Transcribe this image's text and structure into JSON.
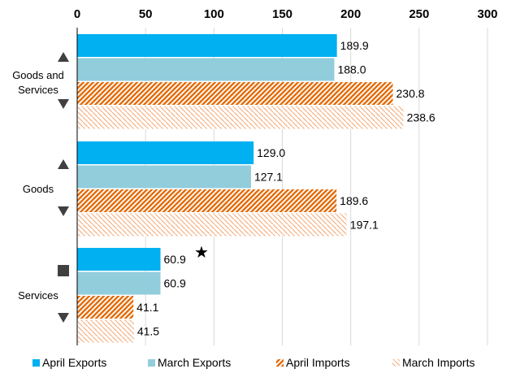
{
  "chart_data": {
    "type": "bar",
    "orientation": "horizontal",
    "title": "",
    "xlabel": "",
    "ylabel": "",
    "xlim": [
      0,
      300
    ],
    "x_ticks": [
      "0",
      "50",
      "100",
      "150",
      "200",
      "250",
      "300"
    ],
    "x_axis_position": "top",
    "grid": true,
    "legend_position": "bottom",
    "categories": [
      "Goods and Services",
      "Goods",
      "Services"
    ],
    "series": [
      {
        "name": "April Exports",
        "values": [
          189.9,
          129.0,
          60.9
        ],
        "labels": [
          "189.9",
          "129.0",
          "60.9"
        ],
        "color": "#00b0f0",
        "pattern": "solid"
      },
      {
        "name": "March Exports",
        "values": [
          188.0,
          127.1,
          60.9
        ],
        "labels": [
          "188.0",
          "127.1",
          "60.9"
        ],
        "color": "#92cddc",
        "pattern": "solid"
      },
      {
        "name": "April Imports",
        "values": [
          230.8,
          189.6,
          41.1
        ],
        "labels": [
          "230.8",
          "189.6",
          "41.1"
        ],
        "color": "#e46c0a",
        "pattern": "dense-diagonal"
      },
      {
        "name": "March Imports",
        "values": [
          238.6,
          197.1,
          41.5
        ],
        "labels": [
          "238.6",
          "197.1",
          "41.5"
        ],
        "color": "#f4b183",
        "pattern": "light-diagonal"
      }
    ],
    "category_markers": [
      {
        "category": "Goods and Services",
        "exports_marker": "up-triangle",
        "imports_marker": "down-triangle"
      },
      {
        "category": "Goods",
        "exports_marker": "up-triangle",
        "imports_marker": "down-triangle"
      },
      {
        "category": "Services",
        "exports_marker": "square",
        "imports_marker": "down-triangle"
      }
    ],
    "annotation_star": {
      "category": "Services",
      "series": "April Exports",
      "symbol": "★"
    },
    "colors": {
      "gridline": "#d9d9d9",
      "axis": "#000000",
      "marker": "#404040"
    }
  }
}
